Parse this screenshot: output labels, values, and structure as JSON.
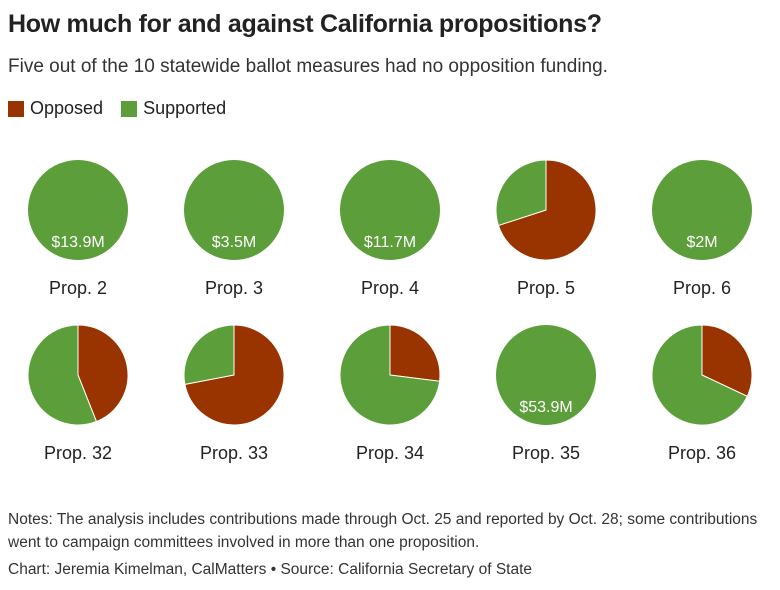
{
  "title": "How much for and against California propositions?",
  "subtitle": "Five out of the 10 statewide ballot measures had no opposition funding.",
  "legend": [
    {
      "label": "Opposed",
      "color": "#993300"
    },
    {
      "label": "Supported",
      "color": "#5c9e3a"
    }
  ],
  "notes": "Notes: The analysis includes contributions made through Oct. 25 and reported by Oct. 28; some contributions went to campaign committees involved in more than one proposition.",
  "credit": "Chart: Jeremia Kimelman, CalMatters • Source: California Secretary of State",
  "chart_data": {
    "type": "pie",
    "series_colors": {
      "opposed": "#993300",
      "supported": "#5c9e3a"
    },
    "pies": [
      {
        "label": "Prop. 2",
        "opposed_pct": 0,
        "supported_pct": 100,
        "total_label": "$13.9M"
      },
      {
        "label": "Prop. 3",
        "opposed_pct": 0,
        "supported_pct": 100,
        "total_label": "$3.5M"
      },
      {
        "label": "Prop. 4",
        "opposed_pct": 0,
        "supported_pct": 100,
        "total_label": "$11.7M"
      },
      {
        "label": "Prop. 5",
        "opposed_pct": 70,
        "supported_pct": 30,
        "total_label": ""
      },
      {
        "label": "Prop. 6",
        "opposed_pct": 0,
        "supported_pct": 100,
        "total_label": "$2M"
      },
      {
        "label": "Prop. 32",
        "opposed_pct": 44,
        "supported_pct": 56,
        "total_label": ""
      },
      {
        "label": "Prop. 33",
        "opposed_pct": 72,
        "supported_pct": 28,
        "total_label": ""
      },
      {
        "label": "Prop. 34",
        "opposed_pct": 27,
        "supported_pct": 73,
        "total_label": ""
      },
      {
        "label": "Prop. 35",
        "opposed_pct": 0,
        "supported_pct": 100,
        "total_label": "$53.9M"
      },
      {
        "label": "Prop. 36",
        "opposed_pct": 32,
        "supported_pct": 68,
        "total_label": ""
      }
    ]
  }
}
